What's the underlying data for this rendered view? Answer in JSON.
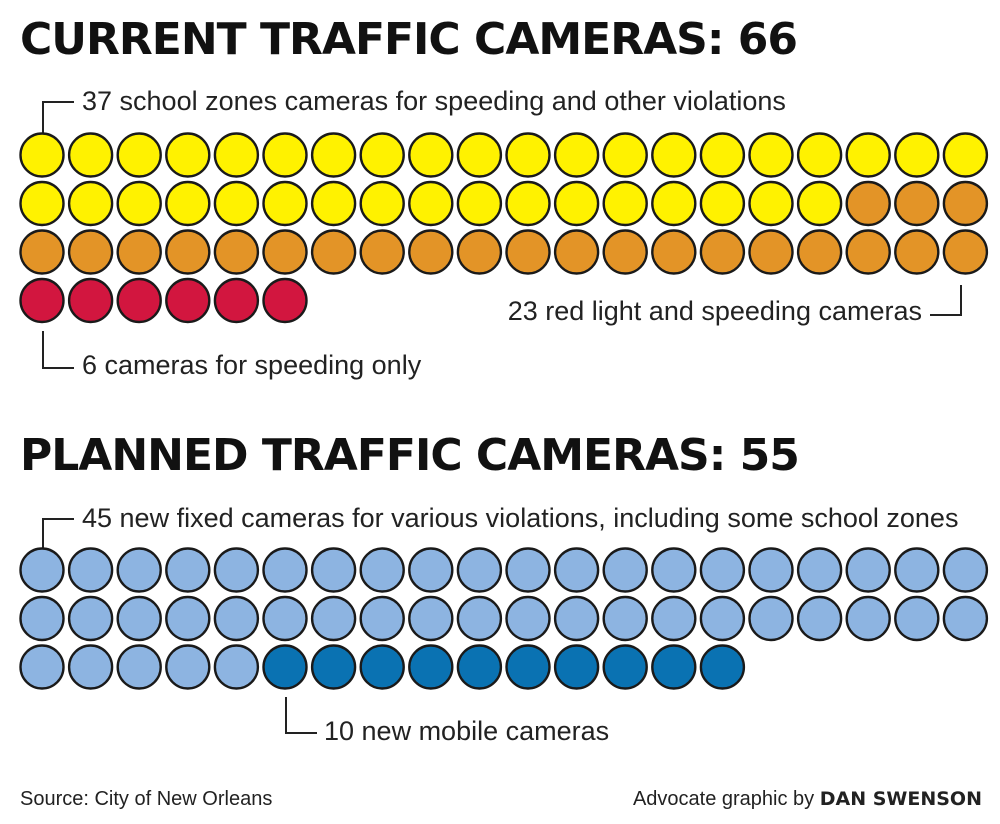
{
  "chart_data": [
    {
      "type": "waffle",
      "title": "CURRENT TRAFFIC CAMERAS: 66",
      "total": 66,
      "per_row": 20,
      "series": [
        {
          "label": "37 school zones cameras for speeding and other violations",
          "value": 37,
          "color": "#fff200"
        },
        {
          "label": "23 red light and speeding cameras",
          "value": 23,
          "color": "#e39427"
        },
        {
          "label": "6 cameras for speeding only",
          "value": 6,
          "color": "#d2163f"
        }
      ]
    },
    {
      "type": "waffle",
      "title": "PLANNED TRAFFIC CAMERAS: 55",
      "total": 55,
      "per_row": 20,
      "series": [
        {
          "label": "45 new fixed cameras for various violations, including some school zones",
          "value": 45,
          "color": "#8db4e1"
        },
        {
          "label": "10 new mobile cameras",
          "value": 10,
          "color": "#0a72b2"
        }
      ]
    }
  ],
  "footer": {
    "source": "Source: City of New Orleans",
    "credit_prefix": "Advocate graphic by",
    "credit_name": "DAN SWENSON"
  }
}
